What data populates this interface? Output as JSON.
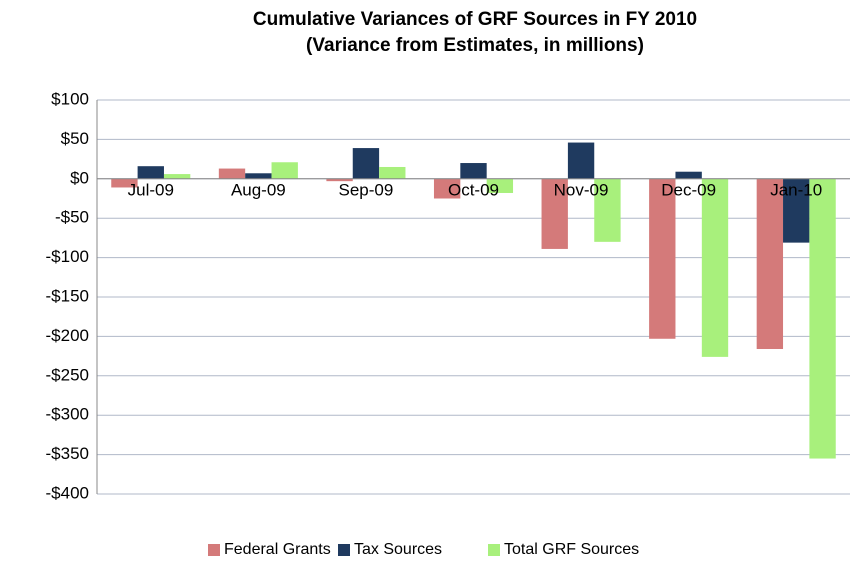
{
  "chart_data": {
    "type": "bar",
    "title": "Cumulative Variances of GRF Sources in FY 2010",
    "subtitle": "(Variance from Estimates, in millions)",
    "categories": [
      "Jul-09",
      "Aug-09",
      "Sep-09",
      "Oct-09",
      "Nov-09",
      "Dec-09",
      "Jan-10"
    ],
    "series": [
      {
        "name": "Federal Grants",
        "color": "#d47a7a",
        "values": [
          -11,
          13,
          -3,
          -25,
          -89,
          -203,
          -216
        ]
      },
      {
        "name": "Tax Sources",
        "color": "#1f3a5f",
        "values": [
          16,
          7,
          39,
          20,
          46,
          9,
          -81
        ]
      },
      {
        "name": "Total GRF Sources",
        "color": "#a8f07c",
        "values": [
          6,
          21,
          15,
          -18,
          -80,
          -226,
          -355
        ]
      }
    ],
    "ylim": [
      -400,
      100
    ],
    "yticks": [
      {
        "value": 100,
        "label": "$100"
      },
      {
        "value": 50,
        "label": "$50"
      },
      {
        "value": 0,
        "label": "$0"
      },
      {
        "value": -50,
        "label": "-$50"
      },
      {
        "value": -100,
        "label": "-$100"
      },
      {
        "value": -150,
        "label": "-$150"
      },
      {
        "value": -200,
        "label": "-$200"
      },
      {
        "value": -250,
        "label": "-$250"
      },
      {
        "value": -300,
        "label": "-$300"
      },
      {
        "value": -350,
        "label": "-$350"
      },
      {
        "value": -400,
        "label": "-$400"
      }
    ],
    "grid": true,
    "legend": "bottom"
  }
}
